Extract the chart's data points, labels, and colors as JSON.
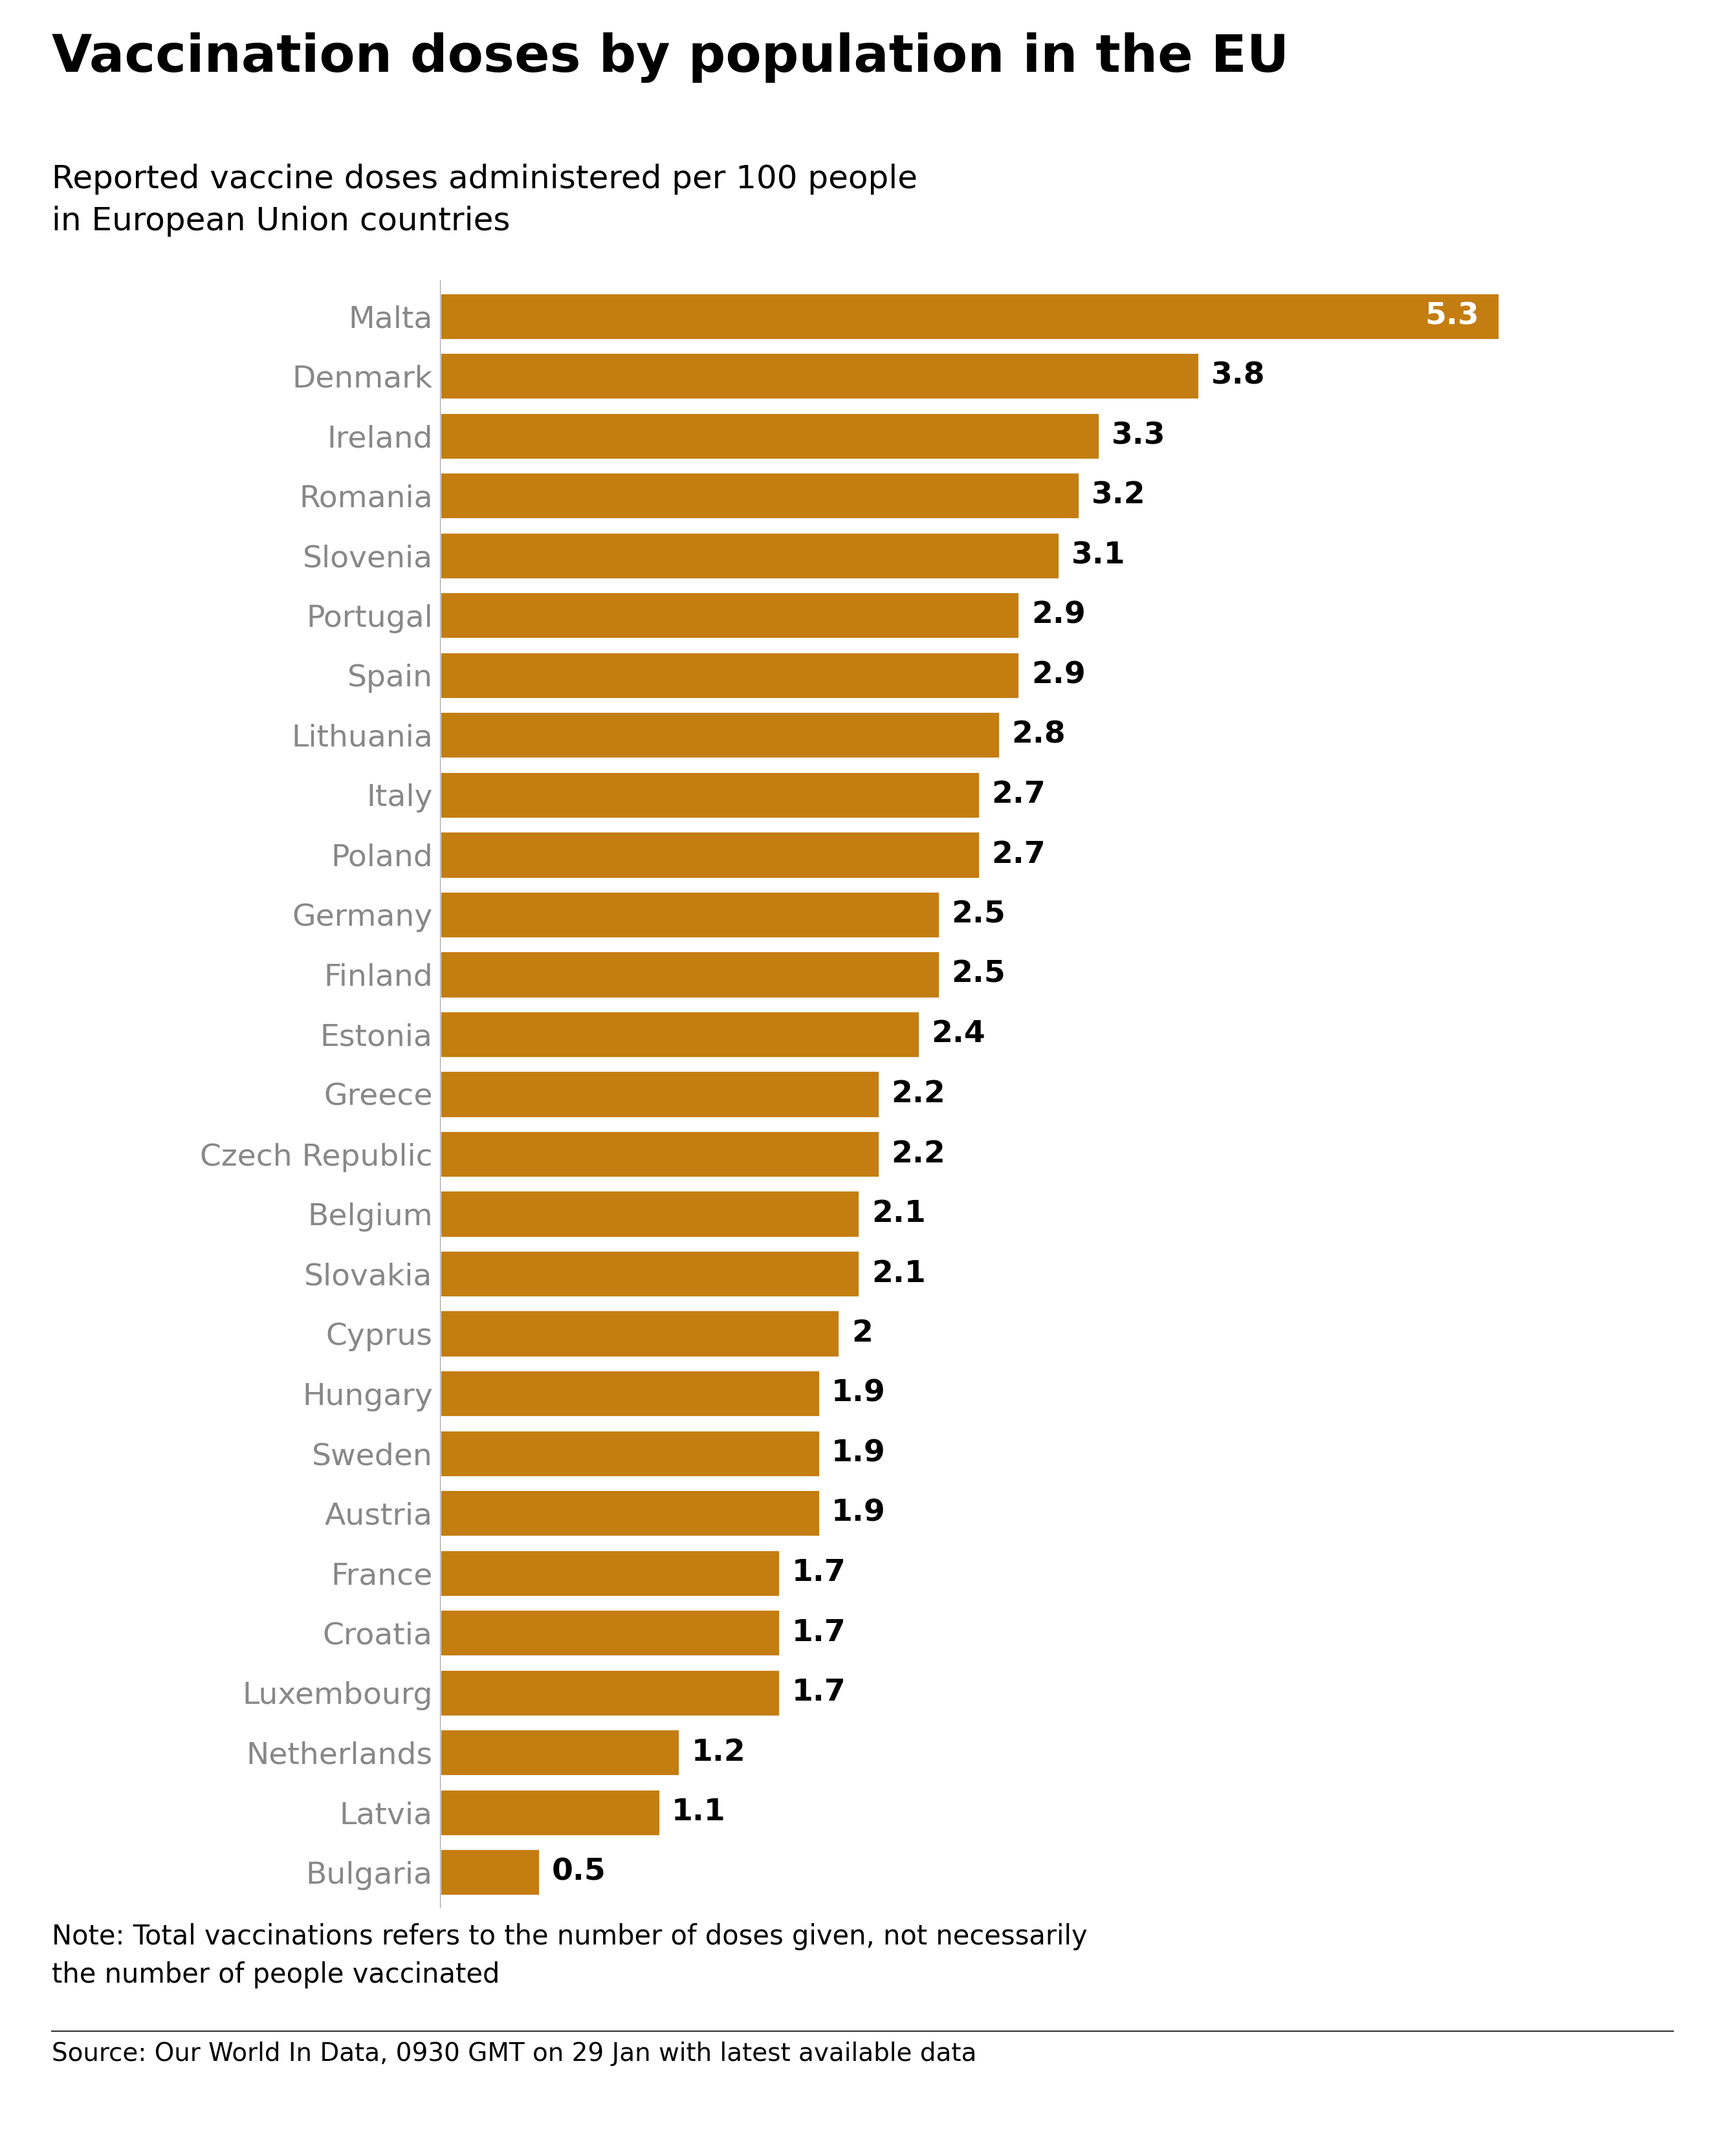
{
  "title": "Vaccination doses by population in the EU",
  "subtitle": "Reported vaccine doses administered per 100 people\nin European Union countries",
  "note": "Note: Total vaccinations refers to the number of doses given, not necessarily\nthe number of people vaccinated",
  "source": "Source: Our World In Data, 0930 GMT on 29 Jan with latest available data",
  "bar_color": "#C47D11",
  "label_color_default": "#000000",
  "label_color_top": "#FFFFFF",
  "country_label_color": "#888888",
  "background_color": "#FFFFFF",
  "countries": [
    "Malta",
    "Denmark",
    "Ireland",
    "Romania",
    "Slovenia",
    "Portugal",
    "Spain",
    "Lithuania",
    "Italy",
    "Poland",
    "Germany",
    "Finland",
    "Estonia",
    "Greece",
    "Czech Republic",
    "Belgium",
    "Slovakia",
    "Cyprus",
    "Hungary",
    "Sweden",
    "Austria",
    "France",
    "Croatia",
    "Luxembourg",
    "Netherlands",
    "Latvia",
    "Bulgaria"
  ],
  "values": [
    5.3,
    3.8,
    3.3,
    3.2,
    3.1,
    2.9,
    2.9,
    2.8,
    2.7,
    2.7,
    2.5,
    2.5,
    2.4,
    2.2,
    2.2,
    2.1,
    2.1,
    2.0,
    1.9,
    1.9,
    1.9,
    1.7,
    1.7,
    1.7,
    1.2,
    1.1,
    0.5
  ],
  "value_labels": [
    "5.3",
    "3.8",
    "3.3",
    "3.2",
    "3.1",
    "2.9",
    "2.9",
    "2.8",
    "2.7",
    "2.7",
    "2.5",
    "2.5",
    "2.4",
    "2.2",
    "2.2",
    "2.1",
    "2.1",
    "2",
    "1.9",
    "1.9",
    "1.9",
    "1.7",
    "1.7",
    "1.7",
    "1.2",
    "1.1",
    "0.5"
  ],
  "xlim": [
    0,
    6.0
  ],
  "title_fontsize": 58,
  "subtitle_fontsize": 36,
  "bar_label_fontsize": 34,
  "country_label_fontsize": 34,
  "note_fontsize": 30,
  "source_fontsize": 28
}
